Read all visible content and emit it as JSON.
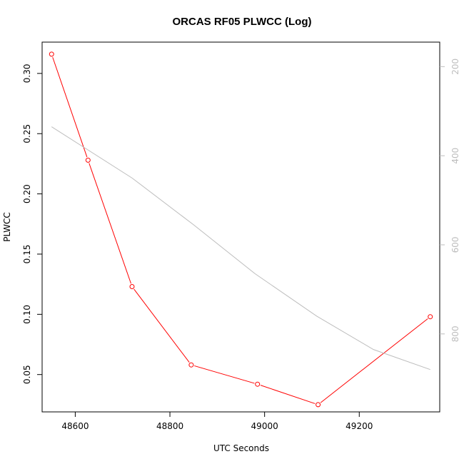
{
  "chart_data": {
    "type": "line",
    "title": "ORCAS RF05 PLWCC (Log)",
    "xlabel": "UTC Seconds",
    "ylabel": "PLWCC",
    "xlim": [
      48530,
      49370
    ],
    "ylim": [
      0.019,
      0.326
    ],
    "x_ticks": [
      48600,
      48800,
      49000,
      49200
    ],
    "y_ticks": [
      0.05,
      0.1,
      0.15,
      0.2,
      0.25,
      0.3
    ],
    "y2_ticks": [
      200,
      400,
      600,
      800
    ],
    "y2lim": [
      975,
      145
    ],
    "grid": false,
    "series": [
      {
        "axis": "left",
        "color": "#ff0000",
        "marker": "circle",
        "x": [
          48550,
          48627,
          48720,
          48845,
          48985,
          49113,
          49350
        ],
        "y": [
          0.316,
          0.228,
          0.123,
          0.058,
          0.042,
          0.025,
          0.098
        ]
      },
      {
        "axis": "right",
        "color": "#bdbdbd",
        "marker": "none",
        "x": [
          48550,
          48720,
          48850,
          48980,
          49110,
          49230,
          49350
        ],
        "y": [
          335,
          450,
          555,
          665,
          760,
          835,
          880
        ]
      }
    ]
  }
}
